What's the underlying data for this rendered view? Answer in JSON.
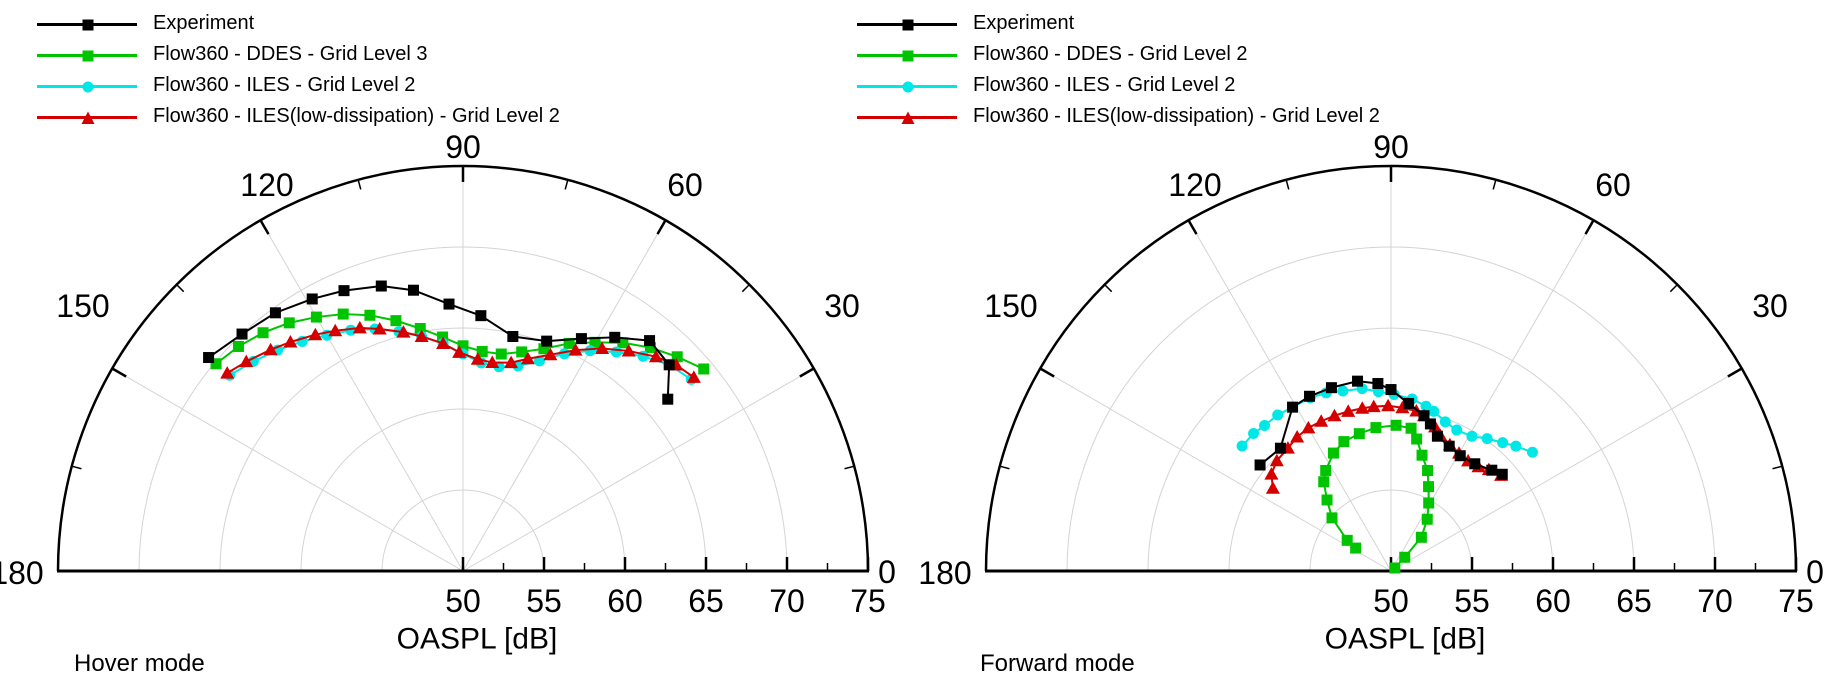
{
  "figure": {
    "background": "#ffffff",
    "grid_color": "#d4d4d4",
    "axis_color": "#000000"
  },
  "panels": [
    {
      "mode_label": "Hover mode",
      "axis_title": "OASPL [dB]"
    },
    {
      "mode_label": "Forward mode",
      "axis_title": "OASPL [dB]"
    }
  ],
  "chart_data": [
    {
      "type": "polar_half",
      "title": "Hover mode",
      "angle_unit": "deg",
      "xlabel": "OASPL [dB]",
      "radial_axis": {
        "min": 50,
        "max": 75,
        "major_ticks": [
          50,
          55,
          60,
          65,
          70,
          75
        ],
        "minor_ticks": [
          52.5,
          57.5,
          62.5,
          67.5,
          72.5
        ]
      },
      "angle_axis": {
        "min": 0,
        "max": 180,
        "major_ticks": [
          0,
          30,
          60,
          90,
          120,
          150,
          180
        ],
        "minor_ticks": [
          15,
          45,
          75,
          105,
          135,
          165
        ]
      },
      "grid": true,
      "legend_position": "top-left",
      "series": [
        {
          "name": "Flow360 - DDES - Grid Level 3",
          "color": "#00c400",
          "marker": "square",
          "points": [
            [
              140,
              69.9
            ],
            [
              135,
              69.6
            ],
            [
              130,
              69.2
            ],
            [
              125,
              68.7
            ],
            [
              120,
              68.1
            ],
            [
              115,
              67.5
            ],
            [
              110,
              66.8
            ],
            [
              105,
              66.0
            ],
            [
              100,
              65.2
            ],
            [
              95,
              64.5
            ],
            [
              90,
              63.9
            ],
            [
              85,
              63.6
            ],
            [
              80,
              63.6
            ],
            [
              75,
              64.0
            ],
            [
              70,
              64.6
            ],
            [
              65,
              65.5
            ],
            [
              60,
              66.3
            ],
            [
              55,
              67.2
            ],
            [
              50,
              68.0
            ],
            [
              45,
              68.7
            ],
            [
              40,
              69.4
            ]
          ]
        },
        {
          "name": "Flow360 - ILES - Grid Level 2",
          "color": "#00e7e7",
          "marker": "circle",
          "points": [
            [
              140,
              68.8
            ],
            [
              135,
              68.3
            ],
            [
              130,
              67.8
            ],
            [
              125,
              67.3
            ],
            [
              120,
              66.8
            ],
            [
              115,
              66.4
            ],
            [
              110,
              65.9
            ],
            [
              105,
              65.3
            ],
            [
              100,
              64.7
            ],
            [
              95,
              64.1
            ],
            [
              90,
              63.4
            ],
            [
              85,
              62.9
            ],
            [
              80,
              62.8
            ],
            [
              75,
              63.1
            ],
            [
              70,
              63.8
            ],
            [
              65,
              64.8
            ],
            [
              60,
              65.7
            ],
            [
              55,
              66.5
            ],
            [
              50,
              67.3
            ],
            [
              45,
              68.0
            ],
            [
              40,
              68.4
            ]
          ]
        },
        {
          "name": "Flow360 - ILES(low-dissipation) - Grid Level 2",
          "color": "#d40000",
          "marker": "triangle",
          "points": [
            [
              140,
              69.0
            ],
            [
              136,
              68.6
            ],
            [
              131,
              68.1
            ],
            [
              127,
              67.7
            ],
            [
              122,
              67.2
            ],
            [
              118,
              66.8
            ],
            [
              113,
              66.3
            ],
            [
              109,
              65.8
            ],
            [
              104,
              65.2
            ],
            [
              100,
              64.7
            ],
            [
              95,
              64.1
            ],
            [
              91,
              63.5
            ],
            [
              86,
              63.1
            ],
            [
              82,
              63.0
            ],
            [
              77,
              63.2
            ],
            [
              73,
              63.7
            ],
            [
              68,
              64.4
            ],
            [
              63,
              65.3
            ],
            [
              58,
              66.2
            ],
            [
              53,
              67.0
            ],
            [
              48,
              67.8
            ],
            [
              44,
              68.3
            ],
            [
              40,
              68.6
            ]
          ]
        },
        {
          "name": "Experiment",
          "color": "#000000",
          "marker": "square",
          "points": [
            [
              140,
              70.5
            ],
            [
              133,
              70.0
            ],
            [
              126,
              69.7
            ],
            [
              119,
              69.2
            ],
            [
              113,
              68.8
            ],
            [
              106,
              68.3
            ],
            [
              100,
              67.6
            ],
            [
              93,
              66.5
            ],
            [
              86,
              65.8
            ],
            [
              78,
              64.8
            ],
            [
              70,
              65.1
            ],
            [
              63,
              66.1
            ],
            [
              57,
              67.2
            ],
            [
              51,
              68.3
            ],
            [
              45,
              68.0
            ],
            [
              40,
              66.5
            ]
          ]
        }
      ]
    },
    {
      "type": "polar_half",
      "title": "Forward mode",
      "angle_unit": "deg",
      "xlabel": "OASPL [dB]",
      "radial_axis": {
        "min": 50,
        "max": 75,
        "major_ticks": [
          50,
          55,
          60,
          65,
          70,
          75
        ],
        "minor_ticks": [
          52.5,
          57.5,
          62.5,
          67.5,
          72.5
        ]
      },
      "angle_axis": {
        "min": 0,
        "max": 180,
        "major_ticks": [
          0,
          30,
          60,
          90,
          120,
          150,
          180
        ],
        "minor_ticks": [
          15,
          45,
          75,
          105,
          135,
          165
        ]
      },
      "grid": true,
      "legend_position": "top-left",
      "series": [
        {
          "name": "Flow360 - DDES - Grid Level 2",
          "color": "#00c400",
          "marker": "square",
          "points": [
            [
              147,
              52.6
            ],
            [
              145,
              53.3
            ],
            [
              138,
              54.9
            ],
            [
              132,
              55.9
            ],
            [
              127,
              56.9
            ],
            [
              123,
              57.4
            ],
            [
              116,
              58.1
            ],
            [
              110,
              58.5
            ],
            [
              103,
              58.7
            ],
            [
              96,
              58.9
            ],
            [
              88,
              59.0
            ],
            [
              82,
              58.9
            ],
            [
              79,
              58.3
            ],
            [
              75,
              57.4
            ],
            [
              70,
              56.6
            ],
            [
              66,
              55.7
            ],
            [
              61,
              54.8
            ],
            [
              55,
              53.9
            ],
            [
              48,
              52.8
            ],
            [
              45,
              51.2
            ],
            [
              38,
              50.3
            ]
          ]
        },
        {
          "name": "Flow360 - ILES - Grid Level 2",
          "color": "#00e7e7",
          "marker": "circle",
          "points": [
            [
              140,
              62.0
            ],
            [
              135,
              62.0
            ],
            [
              131,
              61.9
            ],
            [
              126,
              61.9
            ],
            [
              121,
              61.8
            ],
            [
              115,
              61.8
            ],
            [
              110,
              61.7
            ],
            [
              105,
              61.5
            ],
            [
              99,
              61.4
            ],
            [
              94,
              61.1
            ],
            [
              89,
              60.9
            ],
            [
              83,
              60.7
            ],
            [
              78,
              60.4
            ],
            [
              75,
              60.2
            ],
            [
              70,
              59.8
            ],
            [
              65,
              59.6
            ],
            [
              59,
              59.7
            ],
            [
              54,
              60.1
            ],
            [
              49,
              60.5
            ],
            [
              45,
              60.9
            ],
            [
              40,
              61.4
            ]
          ]
        },
        {
          "name": "Flow360 - ILES(low-dissipation) - Grid Level 2",
          "color": "#d40000",
          "marker": "triangle",
          "points": [
            [
              145,
              58.9
            ],
            [
              141,
              59.5
            ],
            [
              136,
              59.8
            ],
            [
              130,
              59.9
            ],
            [
              125,
              60.1
            ],
            [
              120,
              60.2
            ],
            [
              115,
              60.2
            ],
            [
              110,
              60.2
            ],
            [
              105,
              60.2
            ],
            [
              100,
              60.2
            ],
            [
              96,
              60.2
            ],
            [
              91,
              60.2
            ],
            [
              86,
              60.1
            ],
            [
              81,
              60.0
            ],
            [
              78,
              59.8
            ],
            [
              73,
              59.3
            ],
            [
              70,
              58.9
            ],
            [
              65,
              58.6
            ],
            [
              60,
              58.4
            ],
            [
              55,
              58.3
            ],
            [
              50,
              58.4
            ],
            [
              46,
              58.7
            ],
            [
              41,
              59.0
            ]
          ]
        },
        {
          "name": "Experiment",
          "color": "#000000",
          "marker": "square",
          "points": [
            [
              141,
              60.4
            ],
            [
              132,
              60.2
            ],
            [
              121,
              61.8
            ],
            [
              115,
              61.9
            ],
            [
              108,
              61.9
            ],
            [
              100,
              61.9
            ],
            [
              94,
              61.6
            ],
            [
              90,
              61.2
            ],
            [
              84,
              60.4
            ],
            [
              78,
              59.8
            ],
            [
              75,
              59.4
            ],
            [
              71,
              58.8
            ],
            [
              65,
              58.5
            ],
            [
              59,
              58.3
            ],
            [
              52,
              58.4
            ],
            [
              45,
              58.8
            ],
            [
              41,
              59.1
            ]
          ]
        }
      ]
    }
  ],
  "legends": [
    {
      "items": [
        {
          "label": "Experiment"
        },
        {
          "label": "Flow360 - DDES - Grid Level 3"
        },
        {
          "label": "Flow360 - ILES - Grid Level 2"
        },
        {
          "label": "Flow360 - ILES(low-dissipation) - Grid Level 2"
        }
      ]
    },
    {
      "items": [
        {
          "label": "Experiment"
        },
        {
          "label": "Flow360 - DDES - Grid Level 2"
        },
        {
          "label": "Flow360 - ILES - Grid Level 2"
        },
        {
          "label": "Flow360 - ILES(low-dissipation) - Grid Level 2"
        }
      ]
    }
  ]
}
